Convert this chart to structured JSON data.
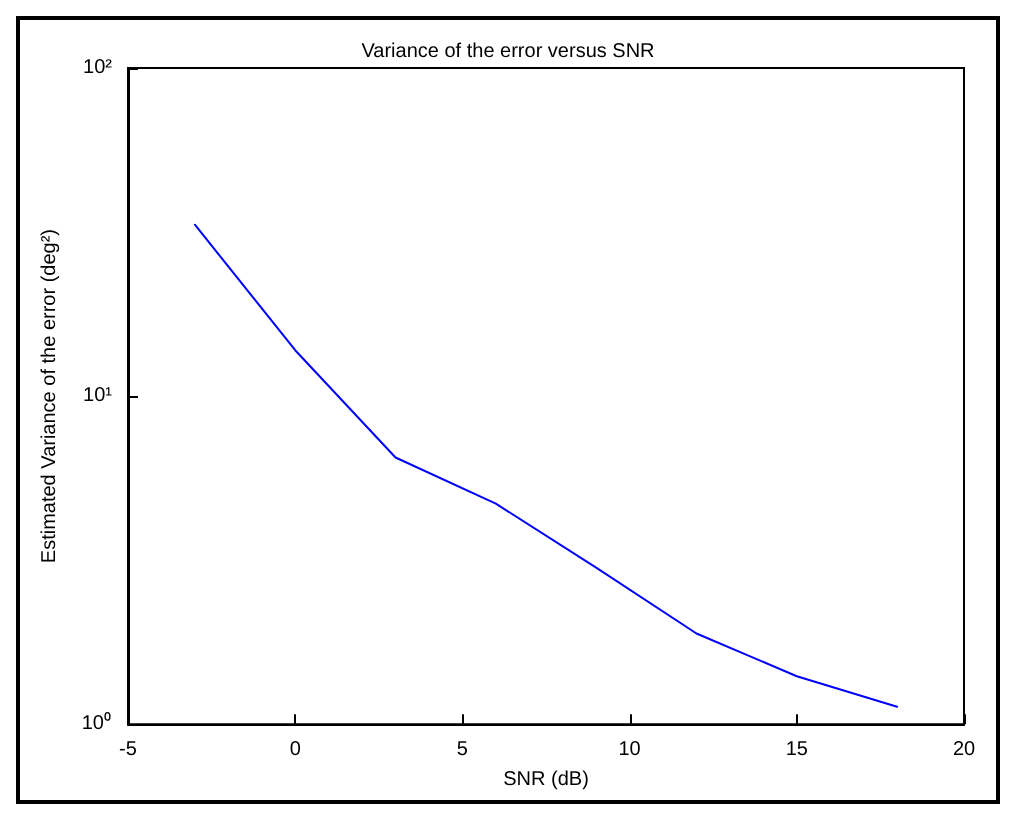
{
  "chart_data": {
    "type": "line",
    "title": "Variance of the error versus SNR",
    "xlabel": "SNR (dB)",
    "ylabel": "Estimated Variance of the error (deg²)",
    "x": [
      -3,
      0,
      3,
      6,
      9,
      12,
      15,
      18
    ],
    "series": [
      {
        "color": "#0000ff",
        "values": [
          33.3,
          13.8,
          6.5,
          4.7,
          3.0,
          1.89,
          1.4,
          1.13
        ]
      }
    ],
    "xlim": [
      -5,
      20
    ],
    "xticks": [
      -5,
      0,
      5,
      10,
      15,
      20
    ],
    "ylim": [
      1,
      100
    ],
    "yticks": [
      {
        "value": 1,
        "label": "10⁰"
      },
      {
        "value": 10,
        "label": "10¹"
      },
      {
        "value": 100,
        "label": "10²"
      }
    ],
    "log": "y",
    "grid": false,
    "marker": "none",
    "line_style": "solid"
  }
}
